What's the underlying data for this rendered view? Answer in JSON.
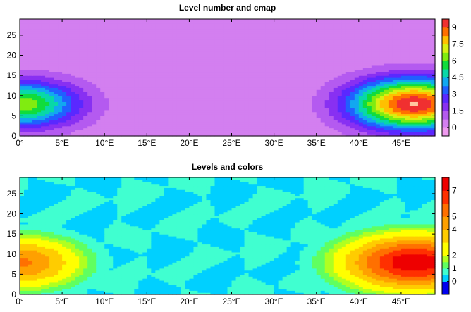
{
  "figure": {
    "background": "#ffffff"
  },
  "chart_data": [
    {
      "type": "heatmap",
      "title": "Level number and cmap",
      "xlabel": "",
      "ylabel": "",
      "xlim": [
        0,
        49
      ],
      "ylim": [
        0,
        29
      ],
      "x_ticks": [
        0,
        5,
        10,
        15,
        20,
        25,
        30,
        35,
        40,
        45
      ],
      "x_tick_labels": [
        "0°",
        "5°E",
        "10°E",
        "15°E",
        "20°E",
        "25°E",
        "30°E",
        "35°E",
        "40°E",
        "45°E"
      ],
      "y_ticks": [
        0,
        5,
        10,
        15,
        20,
        25
      ],
      "y_tick_labels": [
        "0",
        "5",
        "10",
        "15",
        "20",
        "25"
      ],
      "colorbar": {
        "min": -0.75,
        "max": 9.75,
        "levels": [
          -0.75,
          0,
          0.75,
          1.5,
          2.25,
          3,
          3.75,
          4.5,
          5.25,
          6,
          6.75,
          7.5,
          8.25,
          9,
          9.75
        ],
        "colors": [
          "#ee99ee",
          "#d37ff0",
          "#b45af0",
          "#8830f2",
          "#5a28ff",
          "#2060ff",
          "#12a8f0",
          "#08d8a8",
          "#10dc3c",
          "#80ec10",
          "#d8f012",
          "#ffc000",
          "#ff7000",
          "#f03030",
          "#f07878",
          "#ffc8a0"
        ],
        "tick_values": [
          0,
          1.5,
          3,
          4.5,
          6,
          7.5,
          9
        ],
        "tick_labels": [
          "0",
          "1.5",
          "3",
          "4.5",
          "6",
          "7.5",
          "9"
        ]
      },
      "field": {
        "background_levels": [
          -0.75,
          0
        ],
        "hotspots": [
          {
            "x": 0,
            "y": 8,
            "peak": 6.5,
            "rx": 9,
            "ry": 7.5
          },
          {
            "x": 46.5,
            "y": 8,
            "peak": 9.8,
            "rx": 9.5,
            "ry": 8
          }
        ]
      }
    },
    {
      "type": "heatmap",
      "title": "Levels and colors",
      "xlabel": "",
      "ylabel": "",
      "xlim": [
        0,
        49
      ],
      "ylim": [
        0,
        29
      ],
      "x_ticks": [
        0,
        5,
        10,
        15,
        20,
        25,
        30,
        35,
        40,
        45
      ],
      "x_tick_labels": [
        "0°",
        "5°E",
        "10°E",
        "15°E",
        "20°E",
        "25°E",
        "30°E",
        "35°E",
        "40°E",
        "45°E"
      ],
      "y_ticks": [
        0,
        5,
        10,
        15,
        20,
        25
      ],
      "y_tick_labels": [
        "0",
        "5",
        "10",
        "15",
        "20",
        "25"
      ],
      "colorbar": {
        "min": -1,
        "max": 8,
        "levels": [
          -1,
          0,
          0.5,
          1,
          1.5,
          2,
          3,
          4,
          5,
          6,
          7,
          8
        ],
        "colors": [
          "#0000ee",
          "#00d0ff",
          "#40ffd0",
          "#60ff60",
          "#b0ff20",
          "#ffff00",
          "#ffcc00",
          "#ffa000",
          "#ff7000",
          "#ff3000",
          "#ee0000"
        ],
        "tick_values": [
          0,
          1,
          2,
          4,
          5,
          7
        ],
        "tick_labels": [
          "0",
          "1",
          "2",
          "4",
          "5",
          "7"
        ]
      },
      "field": {
        "background_levels": [
          -1,
          0
        ],
        "hotspots": [
          {
            "x": 0,
            "y": 8,
            "peak": 5.2,
            "rx": 9,
            "ry": 8
          },
          {
            "x": 46.5,
            "y": 8,
            "peak": 7.8,
            "rx": 10.5,
            "ry": 8.5
          }
        ]
      }
    }
  ]
}
